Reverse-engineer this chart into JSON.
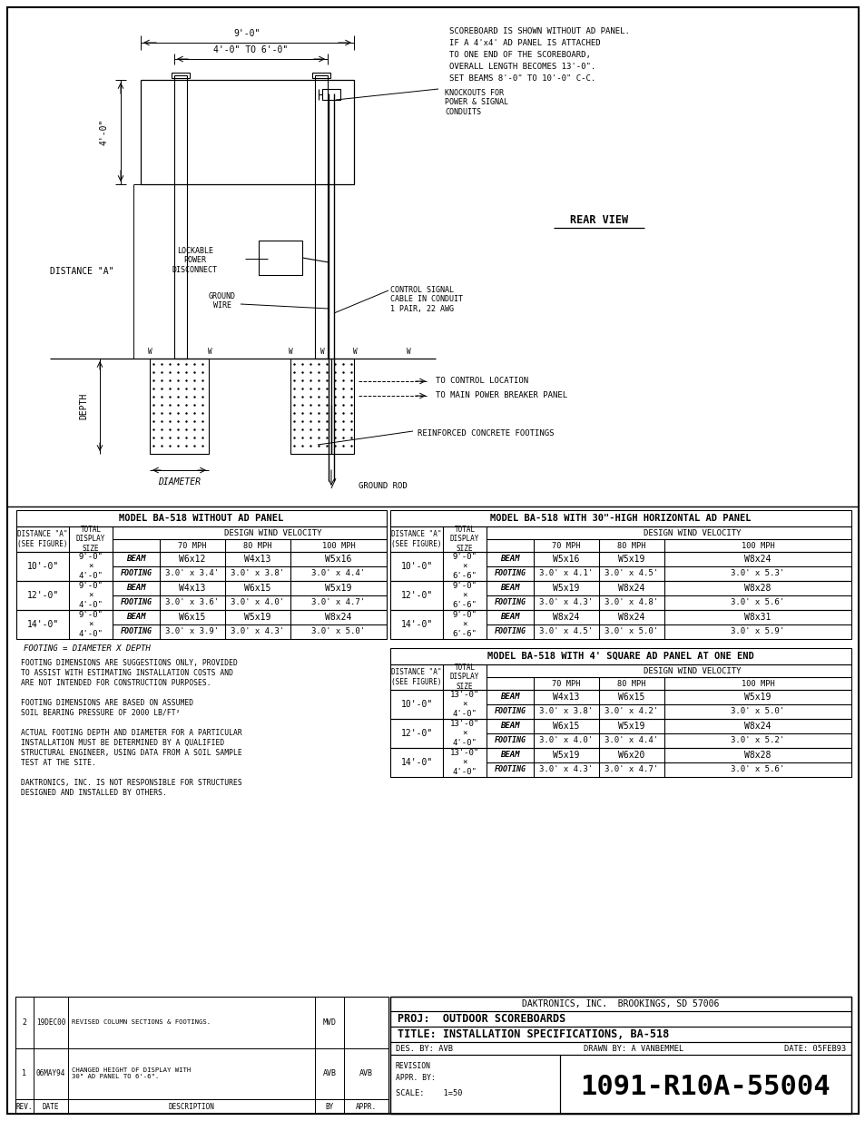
{
  "page_bg": "#ffffff",
  "line_color": "#000000",
  "text_color": "#000000",
  "top_notes": [
    "SCOREBOARD IS SHOWN WITHOUT AD PANEL.",
    "IF A 4'x4' AD PANEL IS ATTACHED",
    "TO ONE END OF THE SCOREBOARD,",
    "OVERALL LENGTH BECOMES 13'-0\".",
    "SET BEAMS 8'-0\" TO 10'-0\" C-C."
  ],
  "rear_view_label": "REAR VIEW",
  "dim_labels": {
    "width_top": "9'-0\"",
    "width_mid": "4'-0\" TO 6'-0\"",
    "height_left": "4'-0\"",
    "distance_a": "DISTANCE \"A\"",
    "depth": "DEPTH",
    "diameter": "DIAMETER"
  },
  "table1_title": "MODEL BA-518 WITHOUT AD PANEL",
  "table2_title": "MODEL BA-518 WITH 30\"-HIGH HORIZONTAL AD PANEL",
  "table3_title": "MODEL BA-518 WITH 4' SQUARE AD PANEL AT ONE END",
  "table1_rows": [
    {
      "dist": "10'-0\"",
      "size": "9'-0\"\n×\n4'-0\"",
      "beam": "W6x12",
      "footing_b": "3.0' x 3.4'",
      "beam2": "W4x13",
      "footing_b2": "3.0' x 3.8'",
      "beam3": "W5x16",
      "footing_b3": "3.0' x 4.4'"
    },
    {
      "dist": "12'-0\"",
      "size": "9'-0\"\n×\n4'-0\"",
      "beam": "W4x13",
      "footing_b": "3.0' x 3.6'",
      "beam2": "W6x15",
      "footing_b2": "3.0' x 4.0'",
      "beam3": "W5x19",
      "footing_b3": "3.0' x 4.7'"
    },
    {
      "dist": "14'-0\"",
      "size": "9'-0\"\n×\n4'-0\"",
      "beam": "W6x15",
      "footing_b": "3.0' x 3.9'",
      "beam2": "W5x19",
      "footing_b2": "3.0' x 4.3'",
      "beam3": "W8x24",
      "footing_b3": "3.0' x 5.0'"
    }
  ],
  "table2_rows": [
    {
      "dist": "10'-0\"",
      "size": "9'-0\"\n×\n6'-6\"",
      "beam": "W5x16",
      "footing_b": "3.0' x 4.1'",
      "beam2": "W5x19",
      "footing_b2": "3.0' x 4.5'",
      "beam3": "W8x24",
      "footing_b3": "3.0' x 5.3'"
    },
    {
      "dist": "12'-0\"",
      "size": "9'-0\"\n×\n6'-6\"",
      "beam": "W5x19",
      "footing_b": "3.0' x 4.3'",
      "beam2": "W8x24",
      "footing_b2": "3.0' x 4.8'",
      "beam3": "W8x28",
      "footing_b3": "3.0' x 5.6'"
    },
    {
      "dist": "14'-0\"",
      "size": "9'-0\"\n×\n6'-6\"",
      "beam": "W8x24",
      "footing_b": "3.0' x 4.5'",
      "beam2": "W8x24",
      "footing_b2": "3.0' x 5.0'",
      "beam3": "W8x31",
      "footing_b3": "3.0' x 5.9'"
    }
  ],
  "table3_rows": [
    {
      "dist": "10'-0\"",
      "size": "13'-0\"\n×\n4'-0\"",
      "beam": "W4x13",
      "footing_b": "3.0' x 3.8'",
      "beam2": "W6x15",
      "footing_b2": "3.0' x 4.2'",
      "beam3": "W5x19",
      "footing_b3": "3.0' x 5.0'"
    },
    {
      "dist": "12'-0\"",
      "size": "13'-0\"\n×\n4'-0\"",
      "beam": "W6x15",
      "footing_b": "3.0' x 4.0'",
      "beam2": "W5x19",
      "footing_b2": "3.0' x 4.4'",
      "beam3": "W8x24",
      "footing_b3": "3.0' x 5.2'"
    },
    {
      "dist": "14'-0\"",
      "size": "13'-0\"\n×\n4'-0\"",
      "beam": "W5x19",
      "footing_b": "3.0' x 4.3'",
      "beam2": "W6x20",
      "footing_b2": "3.0' x 4.7'",
      "beam3": "W8x28",
      "footing_b3": "3.0' x 5.6'"
    }
  ],
  "footing_note": "FOOTING = DIAMETER X DEPTH",
  "notes": [
    "FOOTING DIMENSIONS ARE SUGGESTIONS ONLY, PROVIDED",
    "TO ASSIST WITH ESTIMATING INSTALLATION COSTS AND",
    "ARE NOT INTENDED FOR CONSTRUCTION PURPOSES.",
    "",
    "FOOTING DIMENSIONS ARE BASED ON ASSUMED",
    "SOIL BEARING PRESSURE OF 2000 LB/FT²",
    "",
    "ACTUAL FOOTING DEPTH AND DIAMETER FOR A PARTICULAR",
    "INSTALLATION MUST BE DETERMINED BY A QUALIFIED",
    "STRUCTURAL ENGINEER, USING DATA FROM A SOIL SAMPLE",
    "TEST AT THE SITE.",
    "",
    "DAKTRONICS, INC. IS NOT RESPONSIBLE FOR STRUCTURES",
    "DESIGNED AND INSTALLED BY OTHERS."
  ],
  "title_block": {
    "company": "DAKTRONICS, INC.  BROOKINGS, SD 57006",
    "proj": "OUTDOOR SCOREBOARDS",
    "title": "INSTALLATION SPECIFICATIONS, BA-518",
    "des_by": "AVB",
    "drawn_by": "A VANBEMMEL",
    "date": "05FEB93",
    "scale": "1=50",
    "drawing_num": "1091-R10A-55004"
  },
  "revisions": [
    {
      "rev": "2",
      "date": "19DEC00",
      "desc": "REVISED COLUMN SECTIONS & FOOTINGS.",
      "by": "MVD",
      "appr": ""
    },
    {
      "rev": "1",
      "date": "06MAY94",
      "desc": "CHANGED HEIGHT OF DISPLAY WITH\n30\" AD PANEL TO 6'-6\".",
      "by": "AVB",
      "appr": "AVB"
    }
  ]
}
